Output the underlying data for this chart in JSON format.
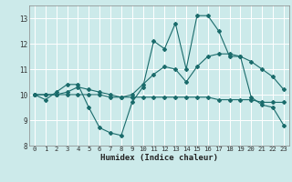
{
  "title": "",
  "xlabel": "Humidex (Indice chaleur)",
  "xlim": [
    -0.5,
    23.5
  ],
  "ylim": [
    8,
    13.5
  ],
  "yticks": [
    8,
    9,
    10,
    11,
    12,
    13
  ],
  "xticks": [
    0,
    1,
    2,
    3,
    4,
    5,
    6,
    7,
    8,
    9,
    10,
    11,
    12,
    13,
    14,
    15,
    16,
    17,
    18,
    19,
    20,
    21,
    22,
    23
  ],
  "bg_color": "#cceaea",
  "line_color": "#1a6b6b",
  "grid_color": "#ffffff",
  "series": [
    [
      10.0,
      9.8,
      10.1,
      10.4,
      10.4,
      9.5,
      8.7,
      8.5,
      8.4,
      9.7,
      10.3,
      12.1,
      11.8,
      12.8,
      11.0,
      13.1,
      13.1,
      12.5,
      11.5,
      11.5,
      9.9,
      9.6,
      9.5,
      8.8
    ],
    [
      10.0,
      10.0,
      10.0,
      10.1,
      10.3,
      10.2,
      10.1,
      10.0,
      9.9,
      10.0,
      10.4,
      10.8,
      11.1,
      11.0,
      10.5,
      11.1,
      11.5,
      11.6,
      11.6,
      11.5,
      11.3,
      11.0,
      10.7,
      10.2
    ],
    [
      10.0,
      10.0,
      10.0,
      10.0,
      10.0,
      10.0,
      10.0,
      9.9,
      9.9,
      9.9,
      9.9,
      9.9,
      9.9,
      9.9,
      9.9,
      9.9,
      9.9,
      9.8,
      9.8,
      9.8,
      9.8,
      9.7,
      9.7,
      9.7
    ]
  ]
}
